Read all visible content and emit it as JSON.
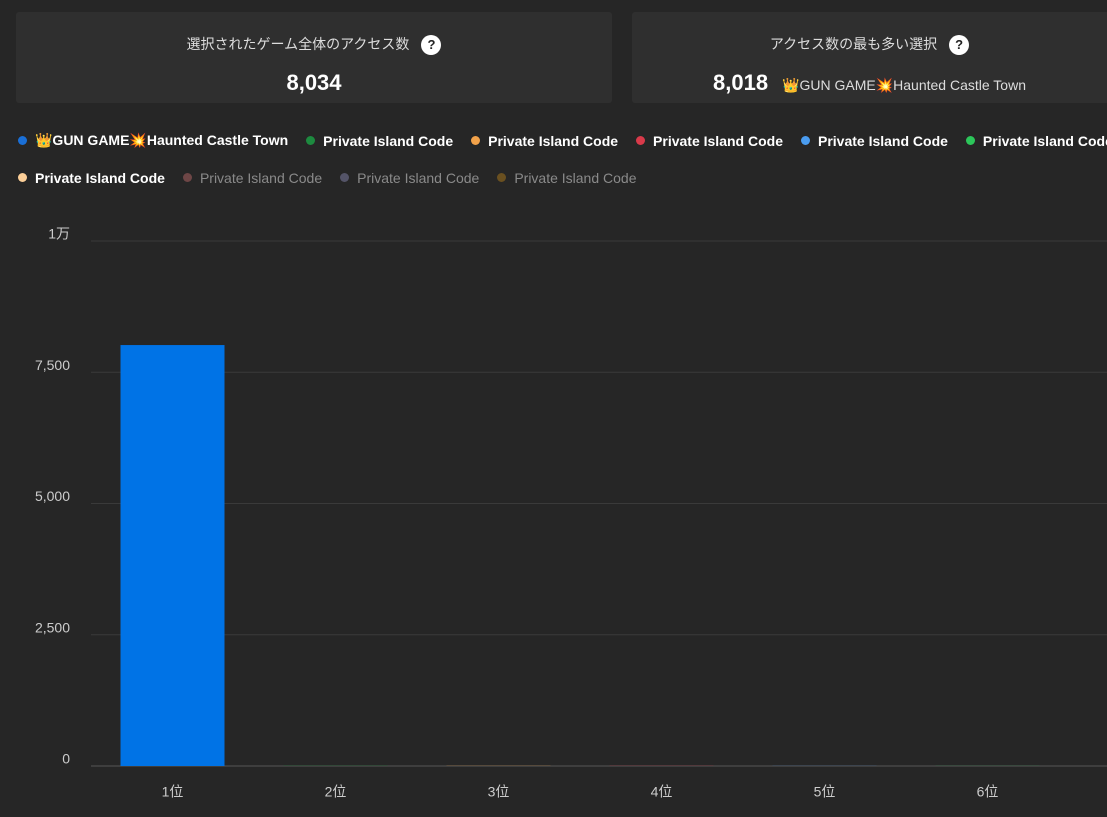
{
  "cards": [
    {
      "label": "選択されたゲーム全体のアクセス数",
      "help": "?",
      "value": "8,034"
    },
    {
      "label": "アクセス数の最も多い選択",
      "help": "?",
      "value": "8,018",
      "detail": "👑GUN GAME💥Haunted Castle Town"
    }
  ],
  "legend": [
    {
      "name": "👑GUN GAME💥Haunted Castle Town",
      "color": "#1a6fd6",
      "hidden": false
    },
    {
      "name": "Private Island Code",
      "color": "#1d8a3f",
      "hidden": false
    },
    {
      "name": "Private Island Code",
      "color": "#f2a24a",
      "hidden": false
    },
    {
      "name": "Private Island Code",
      "color": "#d93a4a",
      "hidden": false
    },
    {
      "name": "Private Island Code",
      "color": "#4a9cf0",
      "hidden": false
    },
    {
      "name": "Private Island Code",
      "color": "#2cc65a",
      "hidden": false
    },
    {
      "name": "Private Island Code",
      "color": "#fccf98",
      "hidden": false
    },
    {
      "name": "Private Island Code",
      "color": "#6e4646",
      "hidden": true
    },
    {
      "name": "Private Island Code",
      "color": "#545468",
      "hidden": true
    },
    {
      "name": "Private Island Code",
      "color": "#6a5020",
      "hidden": true
    }
  ],
  "chart_data": {
    "type": "bar",
    "categories": [
      "1位",
      "2位",
      "3位",
      "4位",
      "5位",
      "6位"
    ],
    "values": [
      8018,
      4,
      3,
      3,
      2,
      2
    ],
    "colors": [
      "#0073e6",
      "#1d8a3f",
      "#f2a24a",
      "#d93a4a",
      "#4a9cf0",
      "#2cc65a"
    ],
    "ylim": [
      0,
      10000
    ],
    "yticks": [
      0,
      {
        "value": 2500,
        "label": "2,500"
      },
      {
        "value": 5000,
        "label": "5,000"
      },
      {
        "value": 7500,
        "label": "7,500"
      },
      {
        "value": 10000,
        "label": "1万"
      }
    ],
    "grid": true
  }
}
